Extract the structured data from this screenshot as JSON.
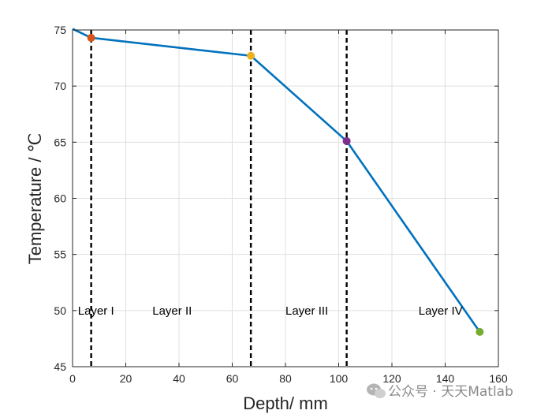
{
  "chart_data": {
    "type": "line",
    "xlabel": "Depth/ mm",
    "ylabel": "Temperature / ℃",
    "xlim": [
      0,
      160
    ],
    "ylim": [
      45,
      75
    ],
    "xticks": [
      0,
      20,
      40,
      60,
      80,
      100,
      120,
      140,
      160
    ],
    "yticks": [
      45,
      50,
      55,
      60,
      65,
      70,
      75
    ],
    "grid": true,
    "box": true,
    "line_color": "#0072BD",
    "series": [
      {
        "x": [
          0,
          7,
          67,
          103,
          153
        ],
        "y": [
          75.1,
          74.3,
          72.7,
          65.1,
          48.1
        ]
      }
    ],
    "markers": [
      {
        "x": 7,
        "y": 74.3,
        "color": "#D95319"
      },
      {
        "x": 67,
        "y": 72.7,
        "color": "#EDB120"
      },
      {
        "x": 103,
        "y": 65.1,
        "color": "#7E2F8E"
      },
      {
        "x": 153,
        "y": 48.1,
        "color": "#77AC30"
      }
    ],
    "boundaries": [
      7,
      67,
      103
    ],
    "annotations": [
      {
        "text": "Layer I",
        "x": 2,
        "y": 50
      },
      {
        "text": "Layer II",
        "x": 30,
        "y": 50
      },
      {
        "text": "Layer III",
        "x": 80,
        "y": 50
      },
      {
        "text": "Layer IV",
        "x": 130,
        "y": 50
      }
    ]
  },
  "watermark": {
    "text": "公众号 · 天天Matlab",
    "icon": "wechat-icon"
  }
}
